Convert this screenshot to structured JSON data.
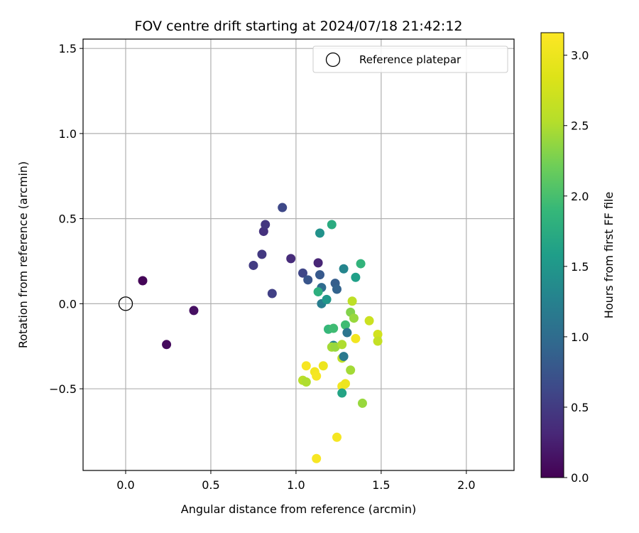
{
  "chart_data": {
    "type": "scatter",
    "title": "FOV centre drift starting at 2024/07/18 21:42:12",
    "xlabel": "Angular distance from reference (arcmin)",
    "ylabel": "Rotation from reference (arcmin)",
    "xlim": [
      -0.25,
      2.28
    ],
    "ylim": [
      -0.98,
      1.555
    ],
    "xticks": [
      "0.0",
      "0.5",
      "1.0",
      "1.5",
      "2.0"
    ],
    "xtick_values": [
      0.0,
      0.5,
      1.0,
      1.5,
      2.0
    ],
    "yticks": [
      "−0.5",
      "0.0",
      "0.5",
      "1.0",
      "1.5"
    ],
    "ytick_values": [
      -0.5,
      0.0,
      0.5,
      1.0,
      1.5
    ],
    "grid": true,
    "legend": {
      "label": "Reference platepar",
      "placement": "upper right"
    },
    "reference_point": {
      "x": 0.0,
      "y": 0.0
    },
    "colorbar": {
      "label": "Hours from first FF file",
      "colormap": "viridis",
      "range": [
        0.0,
        3.16
      ],
      "ticks": [
        "0.0",
        "0.5",
        "1.0",
        "1.5",
        "2.0",
        "2.5",
        "3.0"
      ],
      "tick_values": [
        0.0,
        0.5,
        1.0,
        1.5,
        2.0,
        2.5,
        3.0
      ]
    },
    "points": [
      {
        "x": 0.1,
        "y": 0.135,
        "hours": 0.03
      },
      {
        "x": 0.24,
        "y": -0.24,
        "hours": 0.08
      },
      {
        "x": 0.4,
        "y": -0.04,
        "hours": 0.12
      },
      {
        "x": 0.75,
        "y": 0.225,
        "hours": 0.5
      },
      {
        "x": 0.8,
        "y": 0.29,
        "hours": 0.48
      },
      {
        "x": 0.81,
        "y": 0.425,
        "hours": 0.4
      },
      {
        "x": 0.82,
        "y": 0.465,
        "hours": 0.45
      },
      {
        "x": 0.86,
        "y": 0.06,
        "hours": 0.55
      },
      {
        "x": 0.92,
        "y": 0.565,
        "hours": 0.62
      },
      {
        "x": 0.97,
        "y": 0.265,
        "hours": 0.35
      },
      {
        "x": 1.04,
        "y": 0.18,
        "hours": 0.6
      },
      {
        "x": 1.07,
        "y": 0.14,
        "hours": 0.75
      },
      {
        "x": 1.13,
        "y": 0.24,
        "hours": 0.3
      },
      {
        "x": 1.14,
        "y": 0.17,
        "hours": 0.8
      },
      {
        "x": 1.15,
        "y": 0.095,
        "hours": 1.0
      },
      {
        "x": 1.15,
        "y": 0.0,
        "hours": 1.2
      },
      {
        "x": 1.23,
        "y": 0.12,
        "hours": 0.85
      },
      {
        "x": 1.24,
        "y": 0.085,
        "hours": 0.9
      },
      {
        "x": 1.18,
        "y": 0.025,
        "hours": 1.5
      },
      {
        "x": 1.13,
        "y": 0.07,
        "hours": 1.8
      },
      {
        "x": 1.14,
        "y": 0.415,
        "hours": 1.45
      },
      {
        "x": 1.21,
        "y": 0.465,
        "hours": 1.75
      },
      {
        "x": 1.28,
        "y": 0.205,
        "hours": 1.3
      },
      {
        "x": 1.35,
        "y": 0.155,
        "hours": 1.6
      },
      {
        "x": 1.38,
        "y": 0.235,
        "hours": 1.85
      },
      {
        "x": 1.33,
        "y": 0.015,
        "hours": 2.6
      },
      {
        "x": 1.32,
        "y": -0.05,
        "hours": 2.3
      },
      {
        "x": 1.34,
        "y": -0.085,
        "hours": 2.4
      },
      {
        "x": 1.43,
        "y": -0.1,
        "hours": 2.7
      },
      {
        "x": 1.29,
        "y": -0.125,
        "hours": 1.95
      },
      {
        "x": 1.3,
        "y": -0.17,
        "hours": 1.1
      },
      {
        "x": 1.19,
        "y": -0.15,
        "hours": 1.9
      },
      {
        "x": 1.22,
        "y": -0.145,
        "hours": 1.95
      },
      {
        "x": 1.35,
        "y": -0.205,
        "hours": 3.05
      },
      {
        "x": 1.48,
        "y": -0.18,
        "hours": 2.75
      },
      {
        "x": 1.48,
        "y": -0.22,
        "hours": 2.65
      },
      {
        "x": 1.22,
        "y": -0.245,
        "hours": 1.3
      },
      {
        "x": 1.21,
        "y": -0.255,
        "hours": 2.45
      },
      {
        "x": 1.23,
        "y": -0.255,
        "hours": 2.4
      },
      {
        "x": 1.27,
        "y": -0.24,
        "hours": 2.5
      },
      {
        "x": 1.27,
        "y": -0.32,
        "hours": 2.6
      },
      {
        "x": 1.28,
        "y": -0.31,
        "hours": 1.15
      },
      {
        "x": 1.32,
        "y": -0.39,
        "hours": 2.45
      },
      {
        "x": 1.06,
        "y": -0.365,
        "hours": 3.1
      },
      {
        "x": 1.16,
        "y": -0.365,
        "hours": 3.0
      },
      {
        "x": 1.11,
        "y": -0.4,
        "hours": 3.05
      },
      {
        "x": 1.12,
        "y": -0.425,
        "hours": 3.08
      },
      {
        "x": 1.04,
        "y": -0.45,
        "hours": 2.55
      },
      {
        "x": 1.06,
        "y": -0.46,
        "hours": 2.5
      },
      {
        "x": 1.27,
        "y": -0.485,
        "hours": 3.05
      },
      {
        "x": 1.29,
        "y": -0.47,
        "hours": 3.0
      },
      {
        "x": 1.27,
        "y": -0.525,
        "hours": 1.65
      },
      {
        "x": 1.39,
        "y": -0.585,
        "hours": 2.4
      },
      {
        "x": 1.24,
        "y": -0.785,
        "hours": 3.08
      },
      {
        "x": 1.12,
        "y": -0.91,
        "hours": 3.1
      }
    ]
  }
}
